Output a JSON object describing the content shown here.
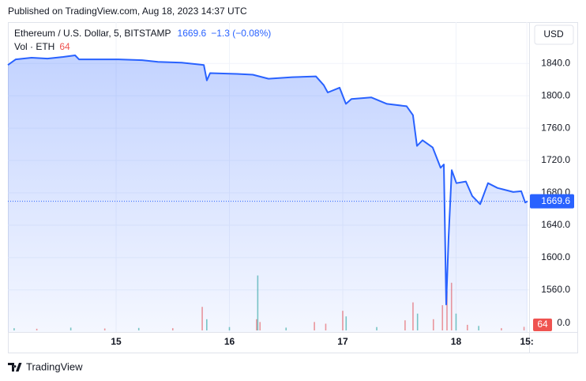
{
  "header": {
    "published": "Published on TradingView.com, Aug 18, 2023 14:37 UTC"
  },
  "footer": {
    "brand": "TradingView"
  },
  "chart_data": {
    "type": "area",
    "symbol": "Ethereum / U.S. Dollar, 5, BITSTAMP",
    "last_price": 1669.6,
    "change_text": "−1.3 (−0.08%)",
    "currency": "USD",
    "color": "#2962ff",
    "grid": true,
    "x": [
      14.045,
      14.115,
      14.254,
      14.394,
      14.533,
      14.638,
      14.672,
      14.812,
      15.021,
      15.23,
      15.369,
      15.578,
      15.774,
      15.801,
      15.829,
      16.066,
      16.206,
      16.345,
      16.554,
      16.763,
      16.833,
      16.868,
      16.972,
      17.028,
      17.077,
      17.251,
      17.39,
      17.564,
      17.62,
      17.655,
      17.704,
      17.794,
      17.864,
      17.892,
      17.913,
      17.934,
      17.962,
      18.003,
      18.087,
      18.143,
      18.213,
      18.282,
      18.366,
      18.505,
      18.575,
      18.61,
      18.631
    ],
    "values": [
      1838,
      1845,
      1847,
      1846,
      1848,
      1850,
      1845,
      1845,
      1845,
      1844,
      1842,
      1841,
      1838,
      1819,
      1828,
      1827,
      1826,
      1821,
      1823,
      1824,
      1813,
      1804,
      1810,
      1790,
      1796,
      1798,
      1790,
      1787,
      1776,
      1738,
      1745,
      1736,
      1711,
      1715,
      1542,
      1625,
      1708,
      1692,
      1694,
      1676,
      1666,
      1692,
      1686,
      1681,
      1682,
      1668,
      1669.6
    ],
    "xlim": [
      14.045,
      18.645
    ],
    "xticks": [
      {
        "value": 15,
        "label": "15"
      },
      {
        "value": 16,
        "label": "16"
      },
      {
        "value": 17,
        "label": "17"
      },
      {
        "value": 18,
        "label": "18"
      },
      {
        "value": 18.625,
        "label": "15:"
      }
    ],
    "ylim": [
      1508,
      1891
    ],
    "yticks": [
      {
        "value": 1560,
        "label": "1560.0"
      },
      {
        "value": 1600,
        "label": "1600.0"
      },
      {
        "value": 1640,
        "label": "1640.0"
      },
      {
        "value": 1680,
        "label": "1680.0"
      },
      {
        "value": 1720,
        "label": "1720.0"
      },
      {
        "value": 1760,
        "label": "1760.0"
      },
      {
        "value": 1800,
        "label": "1800.0"
      },
      {
        "value": 1840,
        "label": "1840.0"
      }
    ],
    "volume": {
      "name": "Vol · ETH",
      "last_value": 64,
      "ylim": [
        0,
        1100
      ],
      "yticks": [
        {
          "value": 0,
          "label": "0.0"
        }
      ],
      "x": [
        14.1,
        14.3,
        14.6,
        14.9,
        15.2,
        15.5,
        15.76,
        15.8,
        16.0,
        16.24,
        16.25,
        16.27,
        16.5,
        16.75,
        16.85,
        17.0,
        17.03,
        17.3,
        17.55,
        17.62,
        17.66,
        17.8,
        17.88,
        17.92,
        17.96,
        18.0,
        18.1,
        18.2,
        18.4,
        18.6
      ],
      "values": [
        40,
        30,
        50,
        35,
        45,
        40,
        420,
        200,
        60,
        200,
        980,
        150,
        50,
        150,
        120,
        350,
        250,
        60,
        180,
        500,
        300,
        200,
        450,
        700,
        850,
        300,
        100,
        80,
        40,
        64
      ],
      "colors": [
        "#26a69a",
        "#ef5350",
        "#26a69a",
        "#ef5350",
        "#26a69a",
        "#ef5350",
        "#ef5350",
        "#26a69a",
        "#26a69a",
        "#ef5350",
        "#26a69a",
        "#ef5350",
        "#26a69a",
        "#ef5350",
        "#ef5350",
        "#ef5350",
        "#26a69a",
        "#26a69a",
        "#ef5350",
        "#ef5350",
        "#26a69a",
        "#ef5350",
        "#ef5350",
        "#ef5350",
        "#ef5350",
        "#26a69a",
        "#ef5350",
        "#26a69a",
        "#ef5350",
        "#ef5350"
      ]
    }
  }
}
